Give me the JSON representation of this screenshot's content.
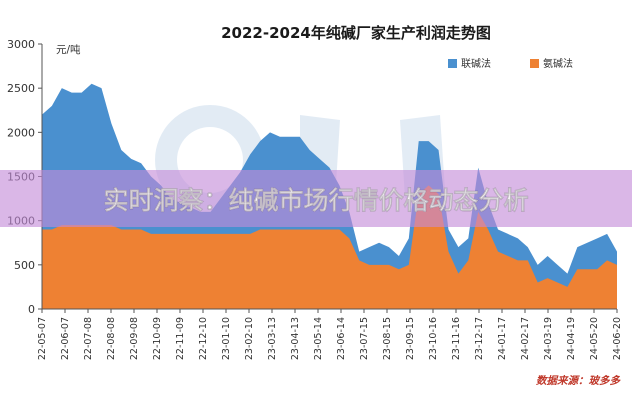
{
  "chart_data": {
    "type": "area",
    "title": "2022-2024年纯碱厂家生产利润走势图",
    "unit_label": "元/吨",
    "ylim": [
      0,
      3000
    ],
    "yticks": [
      0,
      500,
      1000,
      1500,
      2000,
      2500,
      3000
    ],
    "xtick_labels": [
      "22-05-07",
      "22-06-07",
      "22-07-08",
      "22-08-08",
      "22-09-08",
      "22-10-09",
      "22-11-09",
      "22-12-10",
      "23-01-10",
      "23-02-10",
      "23-03-13",
      "23-04-13",
      "23-05-14",
      "23-06-14",
      "23-07-15",
      "23-08-15",
      "23-09-15",
      "23-10-16",
      "23-11-16",
      "23-12-17",
      "24-01-17",
      "24-02-17",
      "24-03-19",
      "24-04-19",
      "24-05-20",
      "24-06-20"
    ],
    "legend_position": "top-right",
    "grid": false,
    "series": [
      {
        "name": "联碱法",
        "color": "#4a90cf",
        "values": [
          2200,
          2300,
          2500,
          2450,
          2450,
          2550,
          2500,
          2100,
          1800,
          1700,
          1650,
          1500,
          1400,
          1250,
          1200,
          1150,
          1100,
          1100,
          1250,
          1400,
          1550,
          1750,
          1900,
          2000,
          1950,
          1950,
          1950,
          1800,
          1700,
          1600,
          1400,
          1100,
          650,
          700,
          750,
          700,
          600,
          800,
          1900,
          1900,
          1800,
          900,
          700,
          800,
          1600,
          1200,
          900,
          850,
          800,
          700,
          500,
          600,
          500,
          400,
          700,
          750,
          800,
          850,
          650
        ]
      },
      {
        "name": "氨碱法",
        "color": "#ee8133",
        "values": [
          900,
          900,
          950,
          950,
          950,
          950,
          950,
          950,
          900,
          900,
          900,
          850,
          850,
          850,
          850,
          850,
          850,
          850,
          850,
          850,
          850,
          850,
          900,
          900,
          900,
          900,
          900,
          900,
          900,
          900,
          900,
          800,
          550,
          500,
          500,
          500,
          450,
          500,
          1300,
          1400,
          1300,
          650,
          400,
          550,
          1100,
          900,
          650,
          600,
          550,
          550,
          300,
          350,
          300,
          250,
          450,
          450,
          450,
          550,
          500
        ]
      }
    ],
    "source": "数据来源：玻多多",
    "banner_text": "实时洞察：纯碱市场行情价格动态分析"
  }
}
